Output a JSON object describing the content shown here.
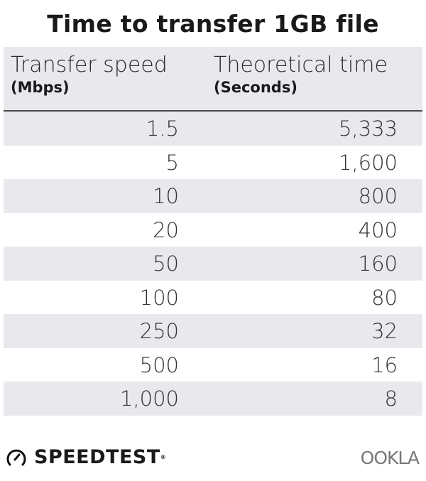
{
  "title": "Time to transfer 1GB file",
  "chart_data": {
    "type": "table",
    "title": "Time to transfer 1GB file",
    "columns": [
      {
        "label": "Transfer speed",
        "unit": "(Mbps)"
      },
      {
        "label": "Theoretical time",
        "unit": "(Seconds)"
      }
    ],
    "rows": [
      [
        "1.5",
        "5,333"
      ],
      [
        "5",
        "1,600"
      ],
      [
        "10",
        "800"
      ],
      [
        "20",
        "400"
      ],
      [
        "50",
        "160"
      ],
      [
        "100",
        "80"
      ],
      [
        "250",
        "32"
      ],
      [
        "500",
        "16"
      ],
      [
        "1,000",
        "8"
      ]
    ],
    "row_stripe_color": "#e9e8ed"
  },
  "footer": {
    "brand": "SPEEDTEST",
    "partner": "OOKLA",
    "brand_icon": "gauge-icon"
  }
}
